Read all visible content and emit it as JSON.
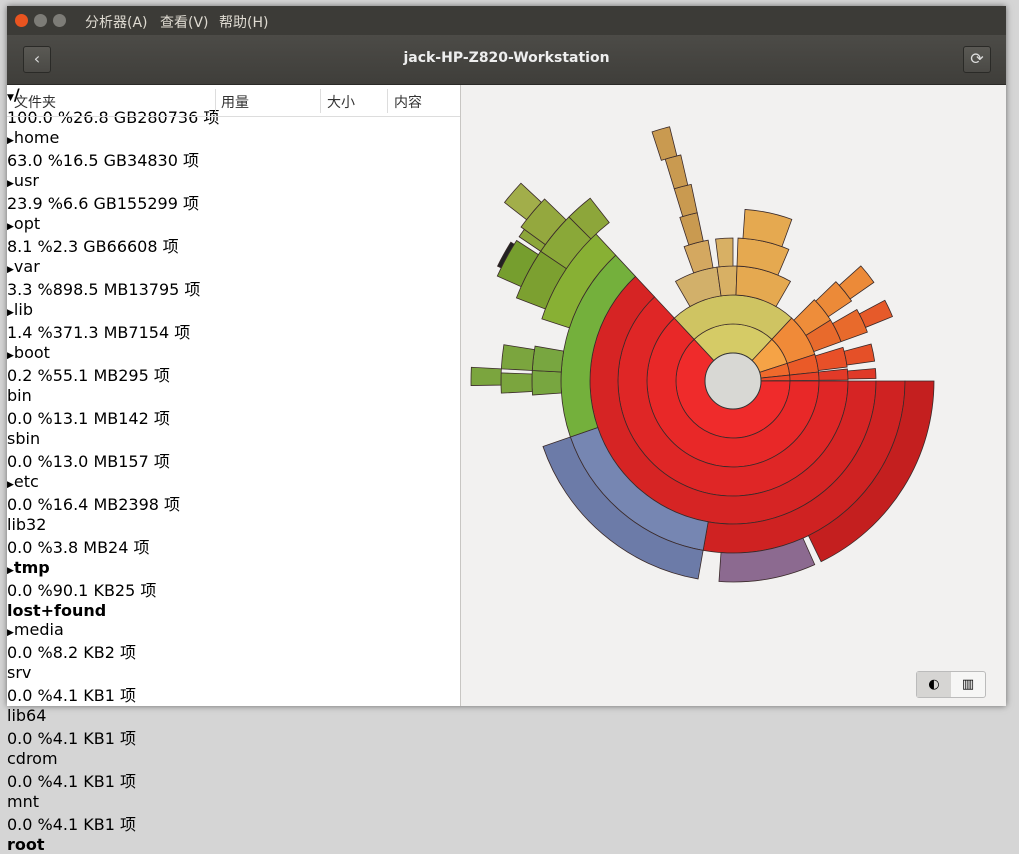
{
  "window": {
    "menu": [
      "分析器(A)",
      "查看(V)",
      "帮助(H)"
    ],
    "title": "jack-HP-Z820-Workstation"
  },
  "table": {
    "columns": [
      "文件夹",
      "用量",
      "大小",
      "内容"
    ],
    "rows": [
      {
        "name": "/",
        "usage": "100.0 %",
        "size": "26.8 GB",
        "items": "280736 项",
        "expander": "open",
        "bold": true
      },
      {
        "name": "home",
        "usage": "63.0 %",
        "size": "16.5 GB",
        "items": "34830 项",
        "expander": "closed"
      },
      {
        "name": "usr",
        "usage": "23.9 %",
        "size": "6.6 GB",
        "items": "155299 项",
        "expander": "closed"
      },
      {
        "name": "opt",
        "usage": "8.1 %",
        "size": "2.3 GB",
        "items": "66608 项",
        "expander": "closed"
      },
      {
        "name": "var",
        "usage": "3.3 %",
        "size": "898.5 MB",
        "items": "13795 项",
        "expander": "closed"
      },
      {
        "name": "lib",
        "usage": "1.4 %",
        "size": "371.3 MB",
        "items": "7154 项",
        "expander": "closed"
      },
      {
        "name": "boot",
        "usage": "0.2 %",
        "size": "55.1 MB",
        "items": "295 项",
        "expander": "closed"
      },
      {
        "name": "bin",
        "usage": "0.0 %",
        "size": "13.1 MB",
        "items": "142 项"
      },
      {
        "name": "sbin",
        "usage": "0.0 %",
        "size": "13.0 MB",
        "items": "157 项"
      },
      {
        "name": "etc",
        "usage": "0.0 %",
        "size": "16.4 MB",
        "items": "2398 项",
        "expander": "closed"
      },
      {
        "name": "lib32",
        "usage": "0.0 %",
        "size": "3.8 MB",
        "items": "24 项"
      },
      {
        "name": "tmp",
        "usage": "0.0 %",
        "size": "90.1 KB",
        "items": "25 项",
        "expander": "closed",
        "bold": true
      },
      {
        "name": "lost+found",
        "bold": true
      },
      {
        "name": "media",
        "usage": "0.0 %",
        "size": "8.2 KB",
        "items": "2 项",
        "expander": "closed"
      },
      {
        "name": "srv",
        "usage": "0.0 %",
        "size": "4.1 KB",
        "items": "1 项"
      },
      {
        "name": "lib64",
        "usage": "0.0 %",
        "size": "4.1 KB",
        "items": "1 项"
      },
      {
        "name": "cdrom",
        "usage": "0.0 %",
        "size": "4.1 KB",
        "items": "1 项"
      },
      {
        "name": "mnt",
        "usage": "0.0 %",
        "size": "4.1 KB",
        "items": "1 项"
      },
      {
        "name": "root",
        "bold": true
      }
    ]
  }
}
